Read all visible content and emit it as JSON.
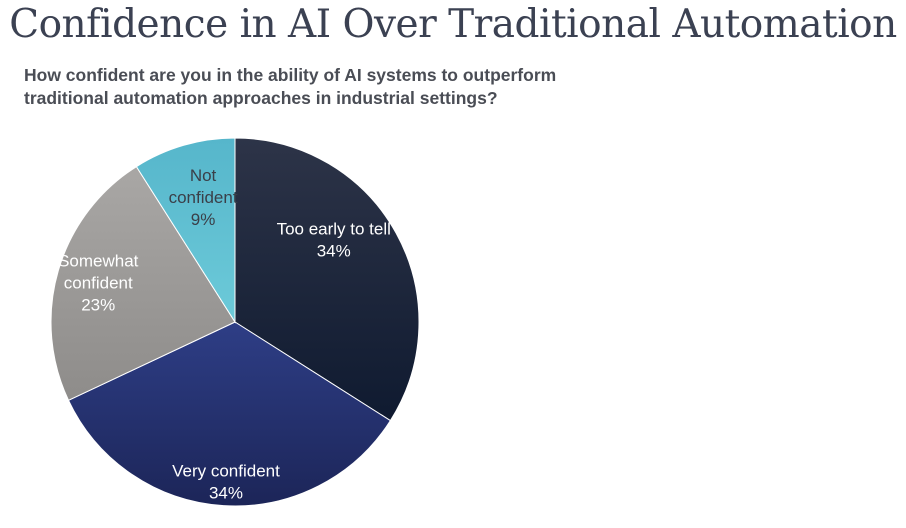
{
  "title": "Confidence in AI Over Traditional Automation",
  "subtitle_lines": [
    "How confident are you in the ability of AI systems to outperform",
    "traditional automation approaches in industrial settings?"
  ],
  "chart_data": {
    "type": "pie",
    "start_angle_deg": 0,
    "direction": "clockwise",
    "slices": [
      {
        "label_lines": [
          "Too early to tell"
        ],
        "value_label": "34%",
        "value": 34,
        "color": "#16223a",
        "text_color": "#ffffff"
      },
      {
        "label_lines": [
          "Very confident"
        ],
        "value_label": "34%",
        "value": 34,
        "color": "#24306a",
        "text_color": "#ffffff"
      },
      {
        "label_lines": [
          "Somewhat",
          "confident"
        ],
        "value_label": "23%",
        "value": 23,
        "color": "#989694",
        "text_color": "#ffffff"
      },
      {
        "label_lines": [
          "Not",
          "confident"
        ],
        "value_label": "9%",
        "value": 9,
        "color": "#5fc0d2",
        "text_color": "#3a3f48"
      }
    ]
  }
}
